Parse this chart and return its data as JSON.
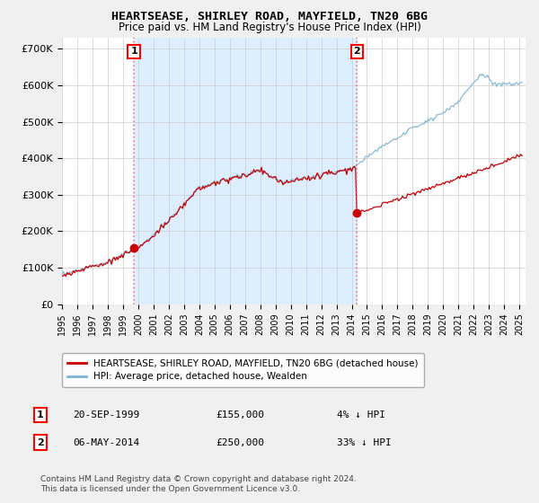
{
  "title": "HEARTSEASE, SHIRLEY ROAD, MAYFIELD, TN20 6BG",
  "subtitle": "Price paid vs. HM Land Registry's House Price Index (HPI)",
  "ylabel_ticks": [
    "£0",
    "£100K",
    "£200K",
    "£300K",
    "£400K",
    "£500K",
    "£600K",
    "£700K"
  ],
  "ytick_values": [
    0,
    100000,
    200000,
    300000,
    400000,
    500000,
    600000,
    700000
  ],
  "ylim": [
    0,
    730000
  ],
  "xlim_start": 1995.25,
  "xlim_end": 2025.4,
  "hpi_color": "#7ab3d4",
  "price_color": "#cc0000",
  "shading_color": "#ddeeff",
  "marker1_date": 1999.72,
  "marker1_price": 155000,
  "marker1_label": "1",
  "marker1_date_str": "20-SEP-1999",
  "marker1_price_str": "£155,000",
  "marker1_hpi_str": "4% ↓ HPI",
  "marker2_date": 2014.35,
  "marker2_price": 250000,
  "marker2_label": "2",
  "marker2_date_str": "06-MAY-2014",
  "marker2_price_str": "£250,000",
  "marker2_hpi_str": "33% ↓ HPI",
  "legend_label_price": "HEARTSEASE, SHIRLEY ROAD, MAYFIELD, TN20 6BG (detached house)",
  "legend_label_hpi": "HPI: Average price, detached house, Wealden",
  "footnote": "Contains HM Land Registry data © Crown copyright and database right 2024.\nThis data is licensed under the Open Government Licence v3.0.",
  "bg_color": "#f0f0f0",
  "plot_bg_color": "#ffffff",
  "grid_color": "#cccccc"
}
